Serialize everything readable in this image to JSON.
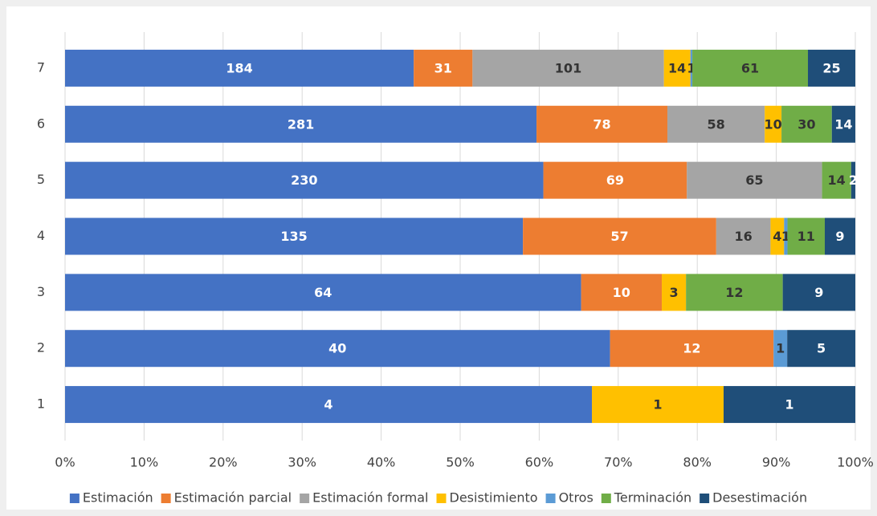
{
  "chart_data": {
    "type": "bar100h",
    "categories": [
      "1",
      "2",
      "3",
      "4",
      "5",
      "6",
      "7"
    ],
    "series": [
      {
        "name": "Estimación",
        "color": "#4472c4",
        "label_color": "#ffffff",
        "values": [
          4,
          40,
          64,
          135,
          230,
          281,
          184
        ]
      },
      {
        "name": "Estimación parcial",
        "color": "#ed7d31",
        "label_color": "#ffffff",
        "values": [
          null,
          12,
          10,
          57,
          69,
          78,
          31
        ]
      },
      {
        "name": "Estimación formal",
        "color": "#a5a5a5",
        "label_color": "#333333",
        "values": [
          null,
          null,
          null,
          16,
          65,
          58,
          101
        ]
      },
      {
        "name": "Desistimiento",
        "color": "#ffc000",
        "label_color": "#333333",
        "values": [
          1,
          null,
          3,
          4,
          null,
          10,
          14
        ]
      },
      {
        "name": "Otros",
        "color": "#5b9bd5",
        "label_color": "#333333",
        "values": [
          null,
          1,
          null,
          1,
          null,
          null,
          1
        ]
      },
      {
        "name": "Terminación",
        "color": "#70ad47",
        "label_color": "#333333",
        "values": [
          null,
          null,
          12,
          11,
          14,
          30,
          61
        ]
      },
      {
        "name": "Desestimación",
        "color": "#1f4e79",
        "label_color": "#ffffff",
        "values": [
          1,
          5,
          9,
          9,
          2,
          14,
          25
        ]
      }
    ],
    "xlim": [
      0,
      100
    ],
    "xticks": [
      {
        "value": 0,
        "label": "0%"
      },
      {
        "value": 10,
        "label": "10%"
      },
      {
        "value": 20,
        "label": "20%"
      },
      {
        "value": 30,
        "label": "30%"
      },
      {
        "value": 40,
        "label": "40%"
      },
      {
        "value": 50,
        "label": "50%"
      },
      {
        "value": 60,
        "label": "60%"
      },
      {
        "value": 70,
        "label": "70%"
      },
      {
        "value": 80,
        "label": "80%"
      },
      {
        "value": 90,
        "label": "90%"
      },
      {
        "value": 100,
        "label": "100%"
      }
    ],
    "grid": true,
    "legend": "bottom"
  }
}
